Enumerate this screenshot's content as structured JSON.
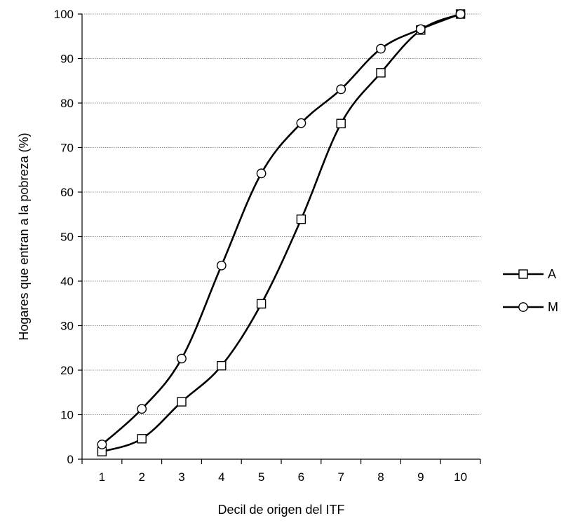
{
  "chart_data": {
    "type": "line",
    "title": "",
    "xlabel": "Decil de origen del ITF",
    "ylabel": "Hogares que entran a la pobreza (%)",
    "categories": [
      "1",
      "2",
      "3",
      "4",
      "5",
      "6",
      "7",
      "8",
      "9",
      "10"
    ],
    "ylim": [
      0,
      100
    ],
    "yticks": [
      0,
      10,
      20,
      30,
      40,
      50,
      60,
      70,
      80,
      90,
      100
    ],
    "grid": true,
    "legend_position": "right",
    "series": [
      {
        "name": "A",
        "marker": "square",
        "color": "#000000",
        "values": [
          1.7,
          4.6,
          12.9,
          21.0,
          34.9,
          53.9,
          75.4,
          86.8,
          96.4,
          100.0
        ]
      },
      {
        "name": "M",
        "marker": "circle",
        "color": "#000000",
        "values": [
          3.3,
          11.3,
          22.6,
          43.5,
          64.2,
          75.5,
          83.1,
          92.2,
          96.6,
          100.0
        ]
      }
    ]
  }
}
